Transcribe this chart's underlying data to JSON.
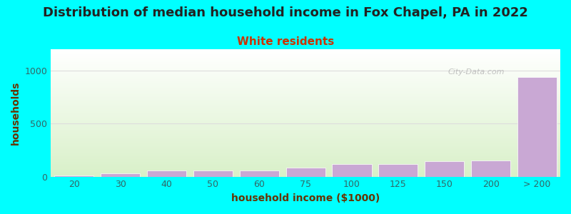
{
  "title": "Distribution of median household income in Fox Chapel, PA in 2022",
  "subtitle": "White residents",
  "xlabel": "household income ($1000)",
  "ylabel": "households",
  "categories": [
    "20",
    "30",
    "40",
    "50",
    "60",
    "75",
    "100",
    "125",
    "150",
    "200",
    "> 200"
  ],
  "values": [
    10,
    30,
    55,
    60,
    58,
    85,
    120,
    115,
    145,
    155,
    940
  ],
  "bar_color": "#c9a8d4",
  "bar_color_last": "#c9a8d4",
  "background_color": "#00ffff",
  "plot_bg_top": "#ffffff",
  "plot_bg_bottom": "#d8f0c8",
  "title_color": "#222222",
  "subtitle_color": "#cc3300",
  "axis_label_color": "#663300",
  "tick_color": "#336666",
  "grid_color": "#dddddd",
  "ylim": [
    0,
    1200
  ],
  "yticks": [
    0,
    500,
    1000
  ],
  "title_fontsize": 13,
  "subtitle_fontsize": 11,
  "axis_label_fontsize": 10,
  "tick_fontsize": 9,
  "watermark": "City-Data.com"
}
